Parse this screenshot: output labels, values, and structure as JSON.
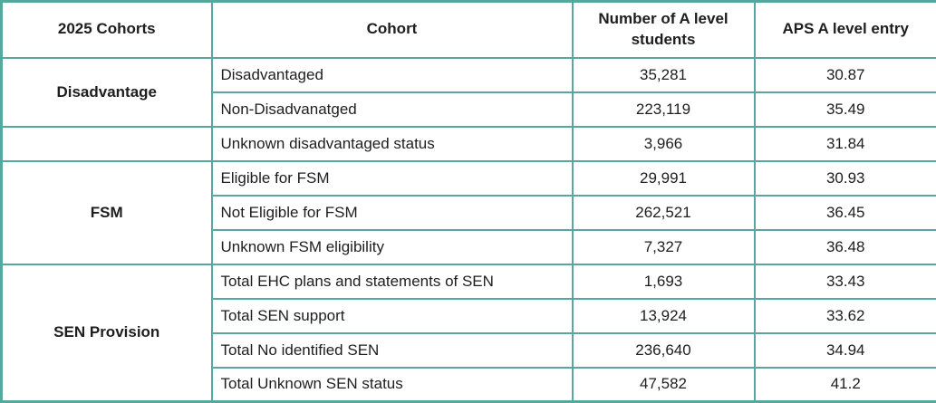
{
  "colors": {
    "border": "#58a79f",
    "text": "#1e1e1e",
    "background": "#ffffff"
  },
  "chart_data": {
    "type": "table",
    "columns": [
      "2025 Cohorts",
      "Cohort",
      "Number of A level students",
      "APS A level entry"
    ],
    "groups": [
      {
        "label": "Disadvantage",
        "rows": [
          {
            "cohort": "Disadvantaged",
            "students": "35,281",
            "aps": "30.87"
          },
          {
            "cohort": "Non-Disadvanatged",
            "students": "223,119",
            "aps": "35.49"
          }
        ]
      },
      {
        "label": "",
        "rows": [
          {
            "cohort": "Unknown disadvantaged status",
            "students": "3,966",
            "aps": "31.84"
          }
        ]
      },
      {
        "label": "FSM",
        "rows": [
          {
            "cohort": "Eligible for FSM",
            "students": "29,991",
            "aps": "30.93"
          },
          {
            "cohort": "Not Eligible for FSM",
            "students": "262,521",
            "aps": "36.45"
          },
          {
            "cohort": "Unknown FSM eligibility",
            "students": "7,327",
            "aps": "36.48"
          }
        ]
      },
      {
        "label": "SEN Provision",
        "rows": [
          {
            "cohort": "Total EHC plans and statements of SEN",
            "students": "1,693",
            "aps": "33.43"
          },
          {
            "cohort": "Total SEN support",
            "students": "13,924",
            "aps": "33.62"
          },
          {
            "cohort": "Total No identified SEN",
            "students": "236,640",
            "aps": "34.94"
          },
          {
            "cohort": "Total Unknown SEN status",
            "students": "47,582",
            "aps": "41.2"
          }
        ]
      }
    ]
  }
}
